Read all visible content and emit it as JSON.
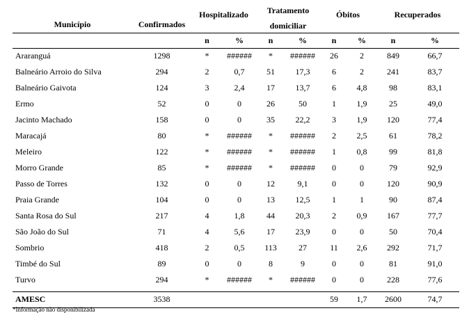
{
  "table": {
    "headers": {
      "municipio": "Município",
      "confirmados": "Confirmados",
      "groups": [
        "Hospitalizado",
        "Tratamento domiciliar",
        "Óbitos",
        "Recuperados"
      ],
      "sub": [
        "n",
        "%",
        "n",
        "%",
        "n",
        "%",
        "n",
        "%"
      ]
    },
    "rows": [
      [
        "Araranguá",
        "1298",
        "*",
        "######",
        "*",
        "######",
        "26",
        "2",
        "849",
        "66,7"
      ],
      [
        "Balneário Arroio do Silva",
        "294",
        "2",
        "0,7",
        "51",
        "17,3",
        "6",
        "2",
        "241",
        "83,7"
      ],
      [
        "Balneário Gaivota",
        "124",
        "3",
        "2,4",
        "17",
        "13,7",
        "6",
        "4,8",
        "98",
        "83,1"
      ],
      [
        "Ermo",
        "52",
        "0",
        "0",
        "26",
        "50",
        "1",
        "1,9",
        "25",
        "49,0"
      ],
      [
        "Jacinto Machado",
        "158",
        "0",
        "0",
        "35",
        "22,2",
        "3",
        "1,9",
        "120",
        "77,4"
      ],
      [
        "Maracajá",
        "80",
        "*",
        "######",
        "*",
        "######",
        "2",
        "2,5",
        "61",
        "78,2"
      ],
      [
        "Meleiro",
        "122",
        "*",
        "######",
        "*",
        "######",
        "1",
        "0,8",
        "99",
        "81,8"
      ],
      [
        "Morro Grande",
        "85",
        "*",
        "######",
        "*",
        "######",
        "0",
        "0",
        "79",
        "92,9"
      ],
      [
        "Passo de Torres",
        "132",
        "0",
        "0",
        "12",
        "9,1",
        "0",
        "0",
        "120",
        "90,9"
      ],
      [
        "Praia Grande",
        "104",
        "0",
        "0",
        "13",
        "12,5",
        "1",
        "1",
        "90",
        "87,4"
      ],
      [
        "Santa Rosa do Sul",
        "217",
        "4",
        "1,8",
        "44",
        "20,3",
        "2",
        "0,9",
        "167",
        "77,7"
      ],
      [
        "São João do Sul",
        "71",
        "4",
        "5,6",
        "17",
        "23,9",
        "0",
        "0",
        "50",
        "70,4"
      ],
      [
        "Sombrio",
        "418",
        "2",
        "0,5",
        "113",
        "27",
        "11",
        "2,6",
        "292",
        "71,7"
      ],
      [
        "Timbé do Sul",
        "89",
        "0",
        "0",
        "8",
        "9",
        "0",
        "0",
        "81",
        "91,0"
      ],
      [
        "Turvo",
        "294",
        "*",
        "######",
        "*",
        "######",
        "0",
        "0",
        "228",
        "77,6"
      ]
    ],
    "total": {
      "name": "AMESC",
      "confirmados": "3538",
      "obitos_n": "59",
      "obitos_pct": "1,7",
      "recuperados_n": "2600",
      "recuperados_pct": "74,7"
    },
    "footnote": "*Informação não disponibilizada"
  }
}
